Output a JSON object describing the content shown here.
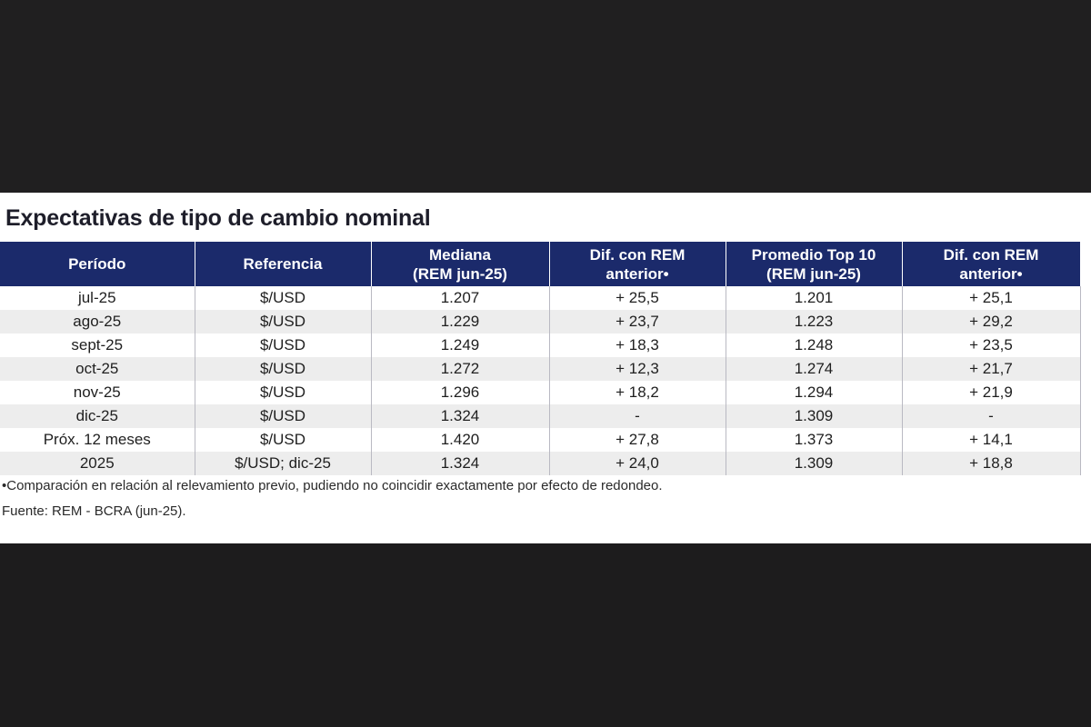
{
  "title": "Expectativas de tipo de cambio nominal",
  "table": {
    "headers": [
      [
        "Período"
      ],
      [
        "Referencia"
      ],
      [
        "Mediana",
        "(REM jun-25)"
      ],
      [
        "Dif. con REM",
        "anterior•"
      ],
      [
        "Promedio Top 10",
        "(REM jun-25)"
      ],
      [
        "Dif. con REM",
        "anterior•"
      ]
    ],
    "rows": [
      [
        "jul-25",
        "$/USD",
        "1.207",
        "+ 25,5",
        "1.201",
        "+ 25,1"
      ],
      [
        "ago-25",
        "$/USD",
        "1.229",
        "+ 23,7",
        "1.223",
        "+ 29,2"
      ],
      [
        "sept-25",
        "$/USD",
        "1.249",
        "+ 18,3",
        "1.248",
        "+ 23,5"
      ],
      [
        "oct-25",
        "$/USD",
        "1.272",
        "+ 12,3",
        "1.274",
        "+ 21,7"
      ],
      [
        "nov-25",
        "$/USD",
        "1.296",
        "+ 18,2",
        "1.294",
        "+ 21,9"
      ],
      [
        "dic-25",
        "$/USD",
        "1.324",
        "-",
        "1.309",
        "-"
      ],
      [
        "Próx. 12 meses",
        "$/USD",
        "1.420",
        "+ 27,8",
        "1.373",
        "+ 14,1"
      ],
      [
        "2025",
        "$/USD; dic-25",
        "1.324",
        "+ 24,0",
        "1.309",
        "+ 18,8"
      ]
    ]
  },
  "footnote": "•Comparación en relación al relevamiento previo, pudiendo no coincidir exactamente por efecto de redondeo.",
  "source": "Fuente: REM - BCRA (jun-25).",
  "colors": {
    "header_bg": "#1b2a6b",
    "header_text": "#ffffff",
    "row_alt_bg": "#ededed",
    "page_bg": "#1f1e1f"
  }
}
